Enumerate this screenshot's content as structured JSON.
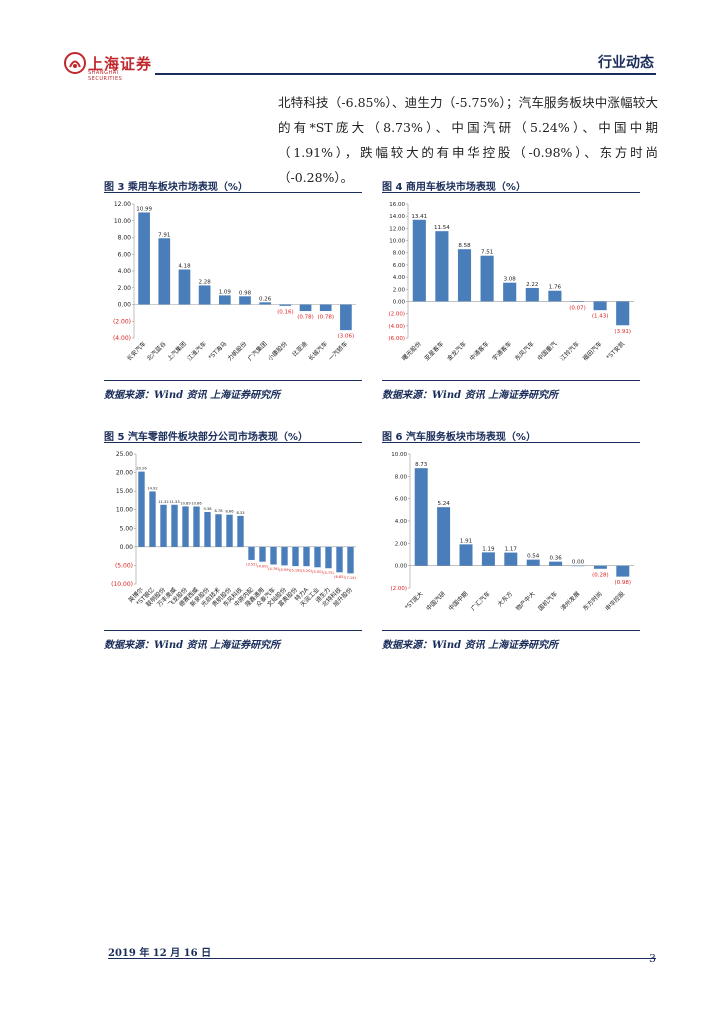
{
  "header": {
    "logo_text": "上海证券",
    "logo_sub": "SHANGHAI SECURITIES",
    "title": "行业动态"
  },
  "paragraph": "北特科技（-6.85%）、迪生力（-5.75%）；汽车服务板块中涨幅较大的有*ST庞大（8.73%）、中国汽研（5.24%）、中国中期（1.91%），跌幅较大的有申华控股（-0.98%）、东方时尚（-0.28%）。",
  "figures": [
    {
      "title": "图 3 乘用车板块市场表现（%）",
      "source": "数据来源：Wind 资讯 上海证券研究所"
    },
    {
      "title": "图 4 商用车板块市场表现（%）",
      "source": "数据来源：Wind 资讯 上海证券研究所"
    },
    {
      "title": "图 5 汽车零部件板块部分公司市场表现（%）",
      "source": "数据来源：Wind 资讯 上海证券研究所"
    },
    {
      "title": "图 6 汽车服务板块市场表现（%）",
      "source": "数据来源：Wind 资讯 上海证券研究所"
    }
  ],
  "colors": {
    "bar": "#4a7ebb",
    "negative_label": "#e02020",
    "accent": "#1a2d5a",
    "brand": "#c0282d"
  },
  "chart_data": [
    {
      "type": "bar",
      "title": "图 3 乘用车板块市场表现（%）",
      "categories": [
        "长安汽车",
        "北汽蓝谷",
        "上汽集团",
        "江淮汽车",
        "*ST海马",
        "力帆股份",
        "广汽集团",
        "小康股份",
        "比亚迪",
        "长城汽车",
        "一汽轿车"
      ],
      "values": [
        10.99,
        7.91,
        4.18,
        2.28,
        1.09,
        0.98,
        0.26,
        -0.16,
        -0.78,
        -0.78,
        -3.06
      ],
      "value_labels": [
        "10.99",
        "7.91",
        "4.18",
        "2.28",
        "1.09",
        "0.98",
        "0.26",
        "(0.16)",
        "(0.78)",
        "(0.78)",
        "(3.06)"
      ],
      "ylim": [
        -4,
        12
      ],
      "yticks": [
        12,
        10,
        8,
        6,
        4,
        2,
        0,
        -2,
        -4
      ],
      "ytick_labels": [
        "12.00",
        "10.00",
        "8.00",
        "6.00",
        "4.00",
        "2.00",
        "0.00",
        "(2.00)",
        "(4.00)"
      ]
    },
    {
      "type": "bar",
      "title": "图 4 商用车板块市场表现（%）",
      "categories": [
        "曙光股份",
        "亚星客车",
        "金龙汽车",
        "中通客车",
        "宇通客车",
        "东风汽车",
        "中国重汽",
        "江铃汽车",
        "福田汽车",
        "*ST安凯"
      ],
      "values": [
        13.41,
        11.54,
        8.58,
        7.51,
        3.08,
        2.22,
        1.76,
        -0.07,
        -1.43,
        -3.91
      ],
      "value_labels": [
        "13.41",
        "11.54",
        "8.58",
        "7.51",
        "3.08",
        "2.22",
        "1.76",
        "(0.07)",
        "(1.43)",
        "(3.91)"
      ],
      "ylim": [
        -6,
        16
      ],
      "yticks": [
        16,
        14,
        12,
        10,
        8,
        6,
        4,
        2,
        0,
        -2,
        -4,
        -6
      ],
      "ytick_labels": [
        "16.00",
        "14.00",
        "12.00",
        "10.00",
        "8.00",
        "6.00",
        "4.00",
        "2.00",
        "0.00",
        "(2.00)",
        "(4.00)",
        "(6.00)"
      ]
    },
    {
      "type": "bar",
      "title": "图 5 汽车零部件板块部分公司市场表现（%）",
      "categories": [
        "英博尔",
        "*ST银亿",
        "联明股份",
        "万丰奥威",
        "飞龙股份",
        "德赛西威",
        "新泉股份",
        "光启技术",
        "贵航股份",
        "东风科技",
        "中原内配",
        "隆鑫通用",
        "众泰汽车",
        "文灿股份",
        "富奥股份",
        "特力A",
        "天润工业",
        "迪生力",
        "北特科技",
        "旭升股份"
      ],
      "values": [
        20.26,
        14.92,
        11.32,
        11.33,
        10.89,
        10.86,
        9.38,
        8.78,
        8.66,
        8.33,
        -3.52,
        -4.0,
        -4.76,
        -4.99,
        -5.18,
        -5.2,
        -5.5,
        -5.75,
        -6.85,
        -7.14
      ],
      "value_labels": [
        "20.26",
        "14.92",
        "11.32",
        "11.33",
        "10.89",
        "10.86",
        "9.38",
        "8.78",
        "8.66",
        "8.33",
        "(3.52)",
        "(4.00)",
        "(4.76)",
        "(4.99)",
        "(5.18)",
        "(5.20)",
        "(5.50)",
        "(5.75)",
        "(6.85)",
        "(7.14)"
      ],
      "ylim": [
        -10,
        25
      ],
      "yticks": [
        25,
        20,
        15,
        10,
        5,
        0,
        -5,
        -10
      ],
      "ytick_labels": [
        "25.00",
        "20.00",
        "15.00",
        "10.00",
        "5.00",
        "0.00",
        "(5.00)",
        "(10.00)"
      ]
    },
    {
      "type": "bar",
      "title": "图 6 汽车服务板块市场表现（%）",
      "categories": [
        "*ST庞大",
        "中国汽研",
        "中国中期",
        "广汇汽车",
        "大东方",
        "物产中大",
        "国机汽车",
        "漳州发展",
        "东方时尚",
        "申华控股"
      ],
      "values": [
        8.73,
        5.24,
        1.91,
        1.19,
        1.17,
        0.54,
        0.36,
        0.0,
        -0.28,
        -0.98
      ],
      "value_labels": [
        "8.73",
        "5.24",
        "1.91",
        "1.19",
        "1.17",
        "0.54",
        "0.36",
        "0.00",
        "(0.28)",
        "(0.98)"
      ],
      "ylim": [
        -2,
        10
      ],
      "yticks": [
        10,
        8,
        6,
        4,
        2,
        0,
        -2
      ],
      "ytick_labels": [
        "10.00",
        "8.00",
        "6.00",
        "4.00",
        "2.00",
        "0.00",
        "(2.00)"
      ]
    }
  ],
  "footer": {
    "date": "2019 年 12 月 16 日",
    "page": "3"
  }
}
